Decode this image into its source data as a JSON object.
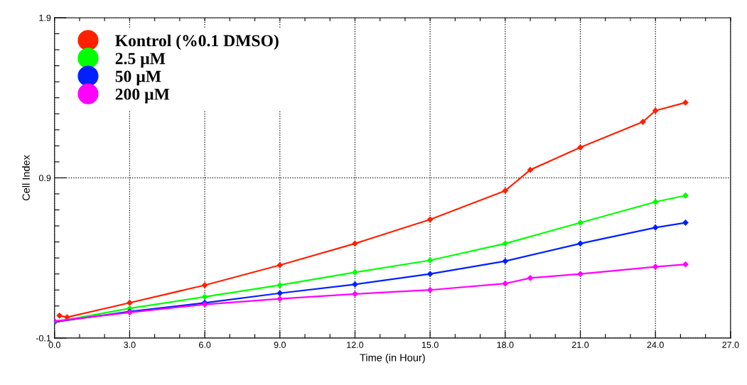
{
  "chart_data": {
    "type": "line",
    "xlabel": "Time (in Hour)",
    "ylabel": "Cell Index",
    "xlim": [
      0,
      27
    ],
    "ylim": [
      -0.1,
      1.9
    ],
    "xticks": [
      {
        "value": 0,
        "label": "0.0"
      },
      {
        "value": 1,
        "label": null
      },
      {
        "value": 2,
        "label": null
      },
      {
        "value": 3,
        "label": "3.0"
      },
      {
        "value": 4,
        "label": null
      },
      {
        "value": 5,
        "label": null
      },
      {
        "value": 6,
        "label": "6.0"
      },
      {
        "value": 7,
        "label": null
      },
      {
        "value": 8,
        "label": null
      },
      {
        "value": 9,
        "label": "9.0"
      },
      {
        "value": 10,
        "label": null
      },
      {
        "value": 11,
        "label": null
      },
      {
        "value": 12,
        "label": "12.0"
      },
      {
        "value": 13,
        "label": null
      },
      {
        "value": 14,
        "label": null
      },
      {
        "value": 15,
        "label": "15.0"
      },
      {
        "value": 16,
        "label": null
      },
      {
        "value": 17,
        "label": null
      },
      {
        "value": 18,
        "label": "18.0"
      },
      {
        "value": 19,
        "label": null
      },
      {
        "value": 20,
        "label": null
      },
      {
        "value": 21,
        "label": "21.0"
      },
      {
        "value": 22,
        "label": null
      },
      {
        "value": 23,
        "label": null
      },
      {
        "value": 24,
        "label": "24.0"
      },
      {
        "value": 25,
        "label": null
      },
      {
        "value": 26,
        "label": null
      },
      {
        "value": 27,
        "label": "27.0"
      }
    ],
    "yticks": [
      -0.1,
      {
        "value": 0.0,
        "label": null
      },
      {
        "value": 0.1,
        "label": null
      },
      {
        "value": 0.2,
        "label": null
      },
      {
        "value": 0.3,
        "label": null
      },
      {
        "value": 0.4,
        "label": null
      },
      {
        "value": 0.5,
        "label": null
      },
      {
        "value": 0.6,
        "label": null
      },
      {
        "value": 0.7,
        "label": null
      },
      {
        "value": 0.8,
        "label": null
      },
      0.9,
      {
        "value": 1.0,
        "label": null
      },
      {
        "value": 1.1,
        "label": null
      },
      {
        "value": 1.2,
        "label": null
      },
      {
        "value": 1.3,
        "label": null
      },
      {
        "value": 1.4,
        "label": null
      },
      {
        "value": 1.5,
        "label": null
      },
      {
        "value": 1.6,
        "label": null
      },
      {
        "value": 1.7,
        "label": null
      },
      {
        "value": 1.8,
        "label": null
      },
      1.9
    ],
    "grid": true,
    "legend": "top left",
    "marker": "diamond",
    "line_style": "solid",
    "series": [
      {
        "name": "Kontrol (%0.1 DMSO)",
        "color": "#ff2000",
        "x": [
          0.2,
          0.5,
          3,
          6,
          9,
          12,
          15,
          18,
          19,
          21,
          23.5,
          24,
          25.2
        ],
        "values": [
          0.04,
          0.03,
          0.12,
          0.23,
          0.355,
          0.49,
          0.64,
          0.82,
          0.95,
          1.09,
          1.25,
          1.32,
          1.37
        ]
      },
      {
        "name": "2.5 µM",
        "color": "#00ff00",
        "x": [
          0,
          3,
          6,
          9,
          12,
          15,
          18,
          21,
          24,
          25.2
        ],
        "values": [
          0.0,
          0.085,
          0.157,
          0.23,
          0.31,
          0.385,
          0.49,
          0.62,
          0.75,
          0.79
        ]
      },
      {
        "name": "50 µM",
        "color": "#0020ff",
        "x": [
          0,
          3,
          6,
          9,
          12,
          15,
          18,
          21,
          24,
          25.2
        ],
        "values": [
          0.0,
          0.065,
          0.12,
          0.18,
          0.235,
          0.3,
          0.38,
          0.49,
          0.59,
          0.62
        ]
      },
      {
        "name": "200 µM",
        "color": "#ff00ff",
        "x": [
          0,
          3,
          6,
          9,
          12,
          15,
          18,
          19,
          21,
          24,
          25.2
        ],
        "values": [
          0.005,
          0.06,
          0.11,
          0.145,
          0.175,
          0.2,
          0.24,
          0.275,
          0.3,
          0.345,
          0.36
        ]
      }
    ]
  }
}
